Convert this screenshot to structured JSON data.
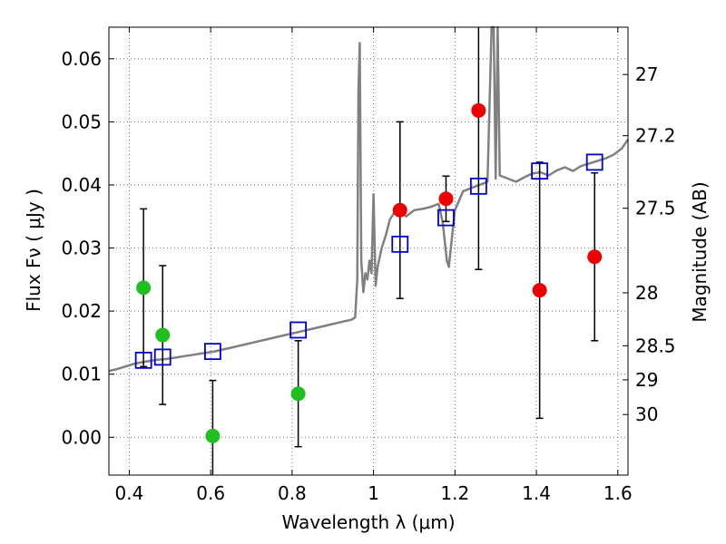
{
  "chart_data": {
    "type": "scatter",
    "xlabel": "Wavelength  λ (μm)",
    "ylabel": "Flux  Fν ( μJy )",
    "y2label": "Magnitude (AB)",
    "xlim": [
      0.35,
      1.625
    ],
    "ylim": [
      -0.006,
      0.065
    ],
    "xticks": [
      0.4,
      0.6,
      0.8,
      1.0,
      1.2,
      1.4,
      1.6
    ],
    "xtick_labels": [
      "0.4",
      "0.6",
      "0.8",
      "1",
      "1.2",
      "1.4",
      "1.6"
    ],
    "yticks": [
      0.0,
      0.01,
      0.02,
      0.03,
      0.04,
      0.05,
      0.06
    ],
    "ytick_labels": [
      "0.00",
      "0.01",
      "0.02",
      "0.03",
      "0.04",
      "0.05",
      "0.06"
    ],
    "y2ticks": [
      {
        "label": "27",
        "flux": 0.0575
      },
      {
        "label": "27.2",
        "flux": 0.0478
      },
      {
        "label": "27.5",
        "flux": 0.0363
      },
      {
        "label": "28",
        "flux": 0.0229
      },
      {
        "label": "28.5",
        "flux": 0.0145
      },
      {
        "label": "29",
        "flux": 0.0091
      },
      {
        "label": "30",
        "flux": 0.0036
      }
    ],
    "grid": true,
    "colors": {
      "model": "#808080",
      "green": "#1fbf1f",
      "red": "#ee0000",
      "square": "#0000cc",
      "errorbar": "#000000"
    },
    "series": [
      {
        "name": "model spectrum",
        "type": "line",
        "x": [
          0.35,
          0.37,
          0.39,
          0.41,
          0.43,
          0.45,
          0.47,
          0.49,
          0.51,
          0.53,
          0.55,
          0.57,
          0.59,
          0.61,
          0.63,
          0.65,
          0.67,
          0.69,
          0.71,
          0.73,
          0.75,
          0.77,
          0.79,
          0.81,
          0.83,
          0.85,
          0.87,
          0.89,
          0.91,
          0.93,
          0.945,
          0.955,
          0.96,
          0.963,
          0.966,
          0.97,
          0.975,
          0.98,
          0.985,
          0.99,
          0.995,
          1.0,
          1.005,
          1.01,
          1.02,
          1.03,
          1.04,
          1.05,
          1.06,
          1.07,
          1.08,
          1.09,
          1.1,
          1.12,
          1.14,
          1.16,
          1.17,
          1.18,
          1.185,
          1.19,
          1.2,
          1.22,
          1.24,
          1.26,
          1.28,
          1.29,
          1.295,
          1.3,
          1.305,
          1.31,
          1.33,
          1.35,
          1.37,
          1.39,
          1.41,
          1.43,
          1.45,
          1.47,
          1.49,
          1.51,
          1.53,
          1.55,
          1.57,
          1.59,
          1.61,
          1.625
        ],
        "y": [
          0.0105,
          0.0108,
          0.0112,
          0.0116,
          0.0119,
          0.0121,
          0.0123,
          0.0124,
          0.0126,
          0.0128,
          0.013,
          0.0132,
          0.0134,
          0.0136,
          0.0139,
          0.0142,
          0.0145,
          0.0148,
          0.0151,
          0.0154,
          0.0157,
          0.016,
          0.0163,
          0.0166,
          0.0169,
          0.0172,
          0.0175,
          0.0178,
          0.0181,
          0.0184,
          0.0186,
          0.019,
          0.025,
          0.055,
          0.0625,
          0.028,
          0.023,
          0.026,
          0.025,
          0.028,
          0.026,
          0.0385,
          0.024,
          0.027,
          0.03,
          0.032,
          0.0345,
          0.0355,
          0.0358,
          0.0356,
          0.035,
          0.0355,
          0.036,
          0.0362,
          0.0365,
          0.037,
          0.034,
          0.028,
          0.027,
          0.03,
          0.036,
          0.039,
          0.0395,
          0.04,
          0.0405,
          0.065,
          0.065,
          0.041,
          0.065,
          0.0415,
          0.041,
          0.0405,
          0.0412,
          0.0418,
          0.042,
          0.0415,
          0.0423,
          0.0428,
          0.0422,
          0.043,
          0.0434,
          0.0438,
          0.0442,
          0.0448,
          0.0458,
          0.0472
        ]
      },
      {
        "name": "green points",
        "type": "scatter",
        "x": [
          0.435,
          0.482,
          0.605,
          0.815
        ],
        "y": [
          0.0237,
          0.0162,
          0.0002,
          0.0069
        ],
        "err": [
          0.0125,
          0.011,
          0.0088,
          0.0084
        ]
      },
      {
        "name": "red points",
        "type": "scatter",
        "x": [
          1.065,
          1.178,
          1.258,
          1.408,
          1.543
        ],
        "y": [
          0.036,
          0.0378,
          0.0518,
          0.0233,
          0.0286
        ],
        "err": [
          0.014,
          0.0036,
          0.0252,
          0.0203,
          0.0133
        ]
      },
      {
        "name": "model band fluxes",
        "type": "scatter",
        "x": [
          0.435,
          0.482,
          0.605,
          0.815,
          1.065,
          1.178,
          1.258,
          1.408,
          1.543
        ],
        "y": [
          0.0122,
          0.0127,
          0.0136,
          0.017,
          0.0306,
          0.0348,
          0.0398,
          0.0422,
          0.0436
        ]
      }
    ]
  }
}
